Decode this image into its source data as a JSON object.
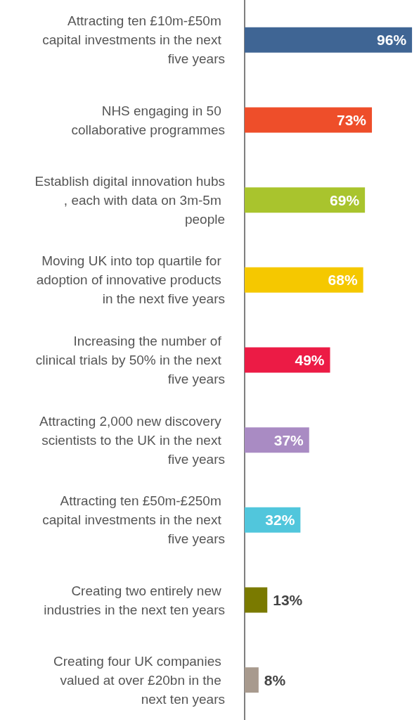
{
  "chart_data": {
    "type": "bar",
    "orientation": "horizontal",
    "categories": [
      "Attracting ten £10m-£50m capital investments in the next five years",
      "NHS engaging in 50 collaborative programmes",
      "Establish digital innovation hubs, each with data on 3m-5m people",
      "Moving UK into top quartile for adoption of innovative products in the next five years",
      "Increasing the number of clinical trials by 50% in the next five years",
      "Attracting 2,000 new discovery scientists to the UK in the next five years",
      "Attracting ten £50m-£250m capital investments in the next five years",
      "Creating two entirely new industries in the next ten years",
      "Creating four UK companies valued at over £20bn in the next ten years"
    ],
    "values": [
      96,
      73,
      69,
      68,
      49,
      37,
      32,
      13,
      8
    ],
    "colors": [
      "#3f6594",
      "#ee4e2a",
      "#a9c42d",
      "#f5c800",
      "#ec1b45",
      "#a98bc3",
      "#51c6dc",
      "#7a7a00",
      "#a89a8e"
    ],
    "value_labels": [
      "96%",
      "73%",
      "69%",
      "68%",
      "49%",
      "37%",
      "32%",
      "13%",
      "8%"
    ]
  }
}
